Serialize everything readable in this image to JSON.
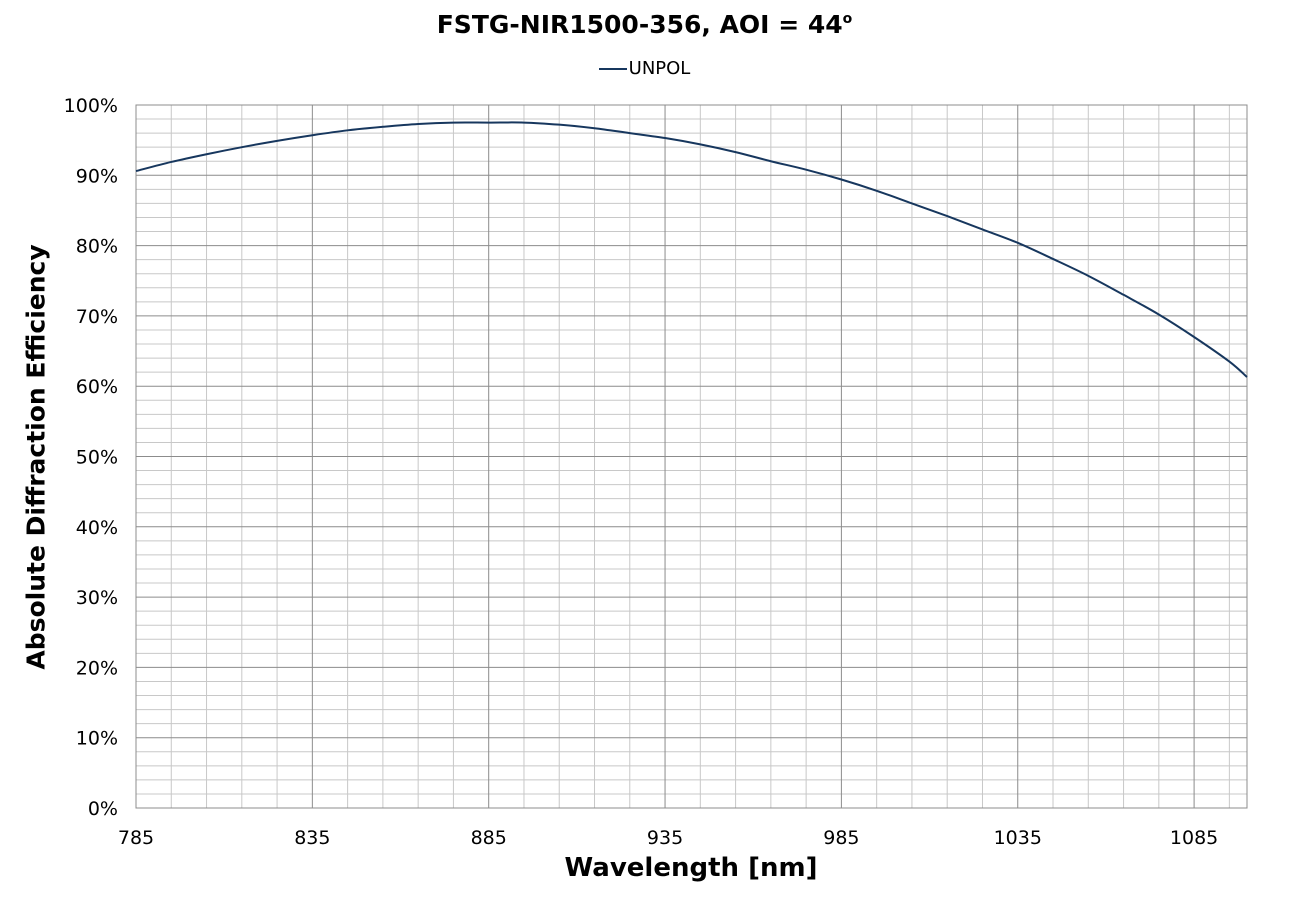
{
  "chart_data": {
    "type": "line",
    "title_main": "FSTG-NIR1500-356, AOI = 44",
    "title_degree": "o",
    "xlabel": "Wavelength [nm]",
    "ylabel": "Absolute Diffraction Efficiency",
    "xlim": [
      785,
      1100
    ],
    "ylim": [
      0,
      100
    ],
    "x_ticks": [
      "785",
      "835",
      "885",
      "935",
      "985",
      "1035",
      "1085"
    ],
    "y_ticks": [
      "0%",
      "10%",
      "20%",
      "30%",
      "40%",
      "50%",
      "60%",
      "70%",
      "80%",
      "90%",
      "100%"
    ],
    "grid": true,
    "legend_position": "top-center",
    "series": [
      {
        "name": "UNPOL",
        "color": "#17375e",
        "x": [
          785,
          795,
          805,
          815,
          825,
          835,
          845,
          855,
          865,
          875,
          885,
          895,
          905,
          915,
          925,
          935,
          945,
          955,
          965,
          975,
          985,
          995,
          1005,
          1015,
          1025,
          1035,
          1045,
          1055,
          1065,
          1075,
          1085,
          1095,
          1100
        ],
        "y": [
          90.6,
          91.9,
          93.0,
          94.0,
          94.9,
          95.7,
          96.4,
          96.9,
          97.3,
          97.5,
          97.5,
          97.5,
          97.2,
          96.7,
          96.0,
          95.3,
          94.4,
          93.3,
          92.0,
          90.8,
          89.4,
          87.8,
          86.0,
          84.2,
          82.3,
          80.4,
          78.1,
          75.7,
          73.0,
          70.2,
          67.0,
          63.5,
          61.3
        ]
      }
    ]
  }
}
